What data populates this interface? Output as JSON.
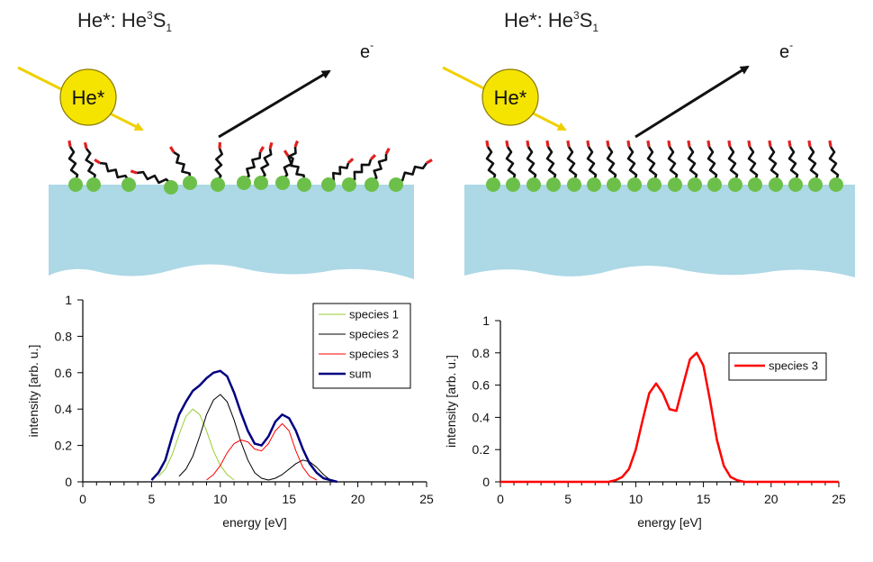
{
  "left_panel": {
    "title_prefix": "He*: He",
    "title_sup": "3",
    "title_letter": "S",
    "title_sub": "1",
    "atom_label": "He*",
    "electron_label": "e",
    "electron_sup": "-"
  },
  "right_panel": {
    "title_prefix": "He*: He",
    "title_sup": "3",
    "title_letter": "S",
    "title_sub": "1",
    "atom_label": "He*",
    "electron_label": "e",
    "electron_sup": "-"
  },
  "colors": {
    "substrate": "#add8e6",
    "headgroup": "#6cc04a",
    "chain": "#111111",
    "tail": "#e02020",
    "atom_fill": "#f5e400",
    "beam": "#f0d000",
    "species1": "#9acd32",
    "species2": "#000000",
    "species3": "#ff0000",
    "sum": "#000080"
  },
  "chart_data": [
    {
      "type": "line",
      "xlabel": "energy [eV]",
      "ylabel": "intensity [arb. u.]",
      "xlim": [
        0,
        25
      ],
      "ylim": [
        0,
        1
      ],
      "xticks": [
        "0",
        "5",
        "10",
        "15",
        "20",
        "25"
      ],
      "yticks": [
        "0",
        "0.2",
        "0.4",
        "0.6",
        "0.8",
        "1"
      ],
      "legend_position": "top-right",
      "series": [
        {
          "name": "species 1",
          "color": "#9acd32",
          "width": 1,
          "x": [
            5.5,
            6,
            6.5,
            7,
            7.5,
            8,
            8.5,
            9,
            9.5,
            10,
            10.5,
            11
          ],
          "y": [
            0.03,
            0.07,
            0.15,
            0.26,
            0.36,
            0.4,
            0.37,
            0.28,
            0.17,
            0.09,
            0.04,
            0.01
          ]
        },
        {
          "name": "species 2",
          "color": "#000000",
          "width": 1,
          "x": [
            7,
            7.5,
            8,
            8.5,
            9,
            9.5,
            10,
            10.5,
            11,
            11.5,
            12,
            12.5,
            13,
            13.5,
            14,
            14.5,
            15,
            15.5,
            16,
            16.5,
            17,
            17.5,
            18
          ],
          "y": [
            0.03,
            0.07,
            0.14,
            0.25,
            0.37,
            0.45,
            0.48,
            0.44,
            0.34,
            0.22,
            0.12,
            0.05,
            0.02,
            0.01,
            0.02,
            0.04,
            0.07,
            0.1,
            0.12,
            0.11,
            0.08,
            0.04,
            0.01
          ]
        },
        {
          "name": "species 3",
          "color": "#ff0000",
          "width": 1,
          "x": [
            9,
            9.5,
            10,
            10.5,
            11,
            11.5,
            12,
            12.5,
            13,
            13.5,
            14,
            14.5,
            15,
            15.5,
            16,
            16.5,
            17
          ],
          "y": [
            0.01,
            0.04,
            0.09,
            0.16,
            0.21,
            0.23,
            0.22,
            0.18,
            0.17,
            0.21,
            0.28,
            0.32,
            0.28,
            0.17,
            0.08,
            0.03,
            0.01
          ]
        },
        {
          "name": "sum",
          "color": "#000080",
          "width": 2.5,
          "x": [
            5,
            5.5,
            6,
            6.5,
            7,
            7.5,
            8,
            8.5,
            9,
            9.5,
            10,
            10.5,
            11,
            11.5,
            12,
            12.5,
            13,
            13.5,
            14,
            14.5,
            15,
            15.5,
            16,
            16.5,
            17,
            17.5,
            18,
            18.5
          ],
          "y": [
            0.01,
            0.05,
            0.12,
            0.25,
            0.37,
            0.44,
            0.5,
            0.53,
            0.57,
            0.6,
            0.61,
            0.58,
            0.49,
            0.38,
            0.28,
            0.21,
            0.2,
            0.25,
            0.33,
            0.37,
            0.35,
            0.28,
            0.18,
            0.1,
            0.05,
            0.02,
            0.01,
            0.0
          ]
        }
      ]
    },
    {
      "type": "line",
      "xlabel": "energy [eV]",
      "ylabel": "intensity [arb. u.]",
      "xlim": [
        0,
        25
      ],
      "ylim": [
        0,
        1
      ],
      "xticks": [
        "0",
        "5",
        "10",
        "15",
        "20",
        "25"
      ],
      "yticks": [
        "0",
        "0.2",
        "0.4",
        "0.6",
        "0.8",
        "1"
      ],
      "legend_position": "top-right",
      "series": [
        {
          "name": "species 3",
          "color": "#ff0000",
          "width": 2.5,
          "x": [
            0,
            5,
            8,
            8.5,
            9,
            9.5,
            10,
            10.5,
            11,
            11.5,
            12,
            12.5,
            13,
            13.5,
            14,
            14.5,
            15,
            15.5,
            16,
            16.5,
            17,
            17.5,
            18,
            20,
            25
          ],
          "y": [
            0,
            0,
            0,
            0.01,
            0.03,
            0.08,
            0.2,
            0.38,
            0.55,
            0.61,
            0.55,
            0.45,
            0.44,
            0.6,
            0.76,
            0.8,
            0.72,
            0.5,
            0.26,
            0.1,
            0.03,
            0.01,
            0,
            0,
            0
          ]
        }
      ]
    }
  ]
}
